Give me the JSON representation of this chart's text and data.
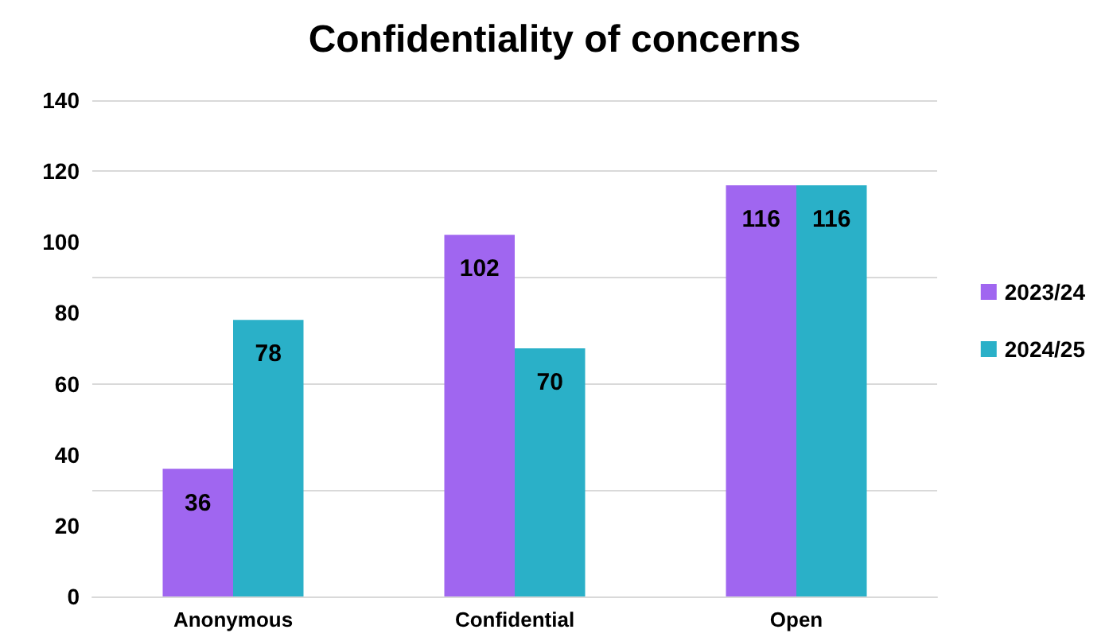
{
  "chart_data": {
    "type": "bar",
    "title": "Confidentiality of concerns",
    "categories": [
      "Anonymous",
      "Confidential",
      "Open"
    ],
    "series": [
      {
        "name": "2023/24",
        "color": "#a066f0",
        "values": [
          36,
          102,
          116
        ]
      },
      {
        "name": "2024/25",
        "color": "#2ab0c8",
        "values": [
          78,
          70,
          116
        ]
      }
    ],
    "ylim": [
      0,
      140
    ],
    "yticks": [
      0,
      20,
      40,
      60,
      80,
      100,
      120,
      140
    ],
    "grid": "y",
    "legend": "right",
    "data_labels": true
  }
}
